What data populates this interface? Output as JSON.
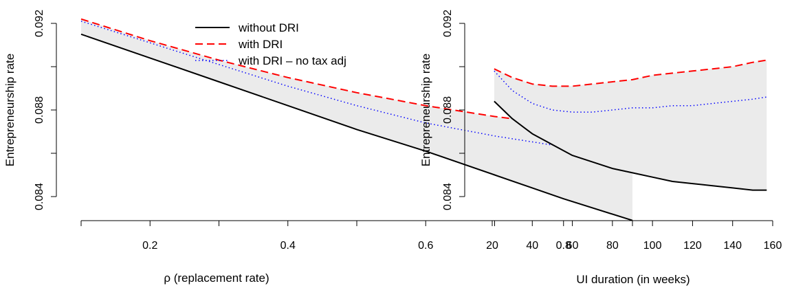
{
  "chart_data": [
    {
      "type": "line",
      "title": "",
      "xlabel": "ρ (replacement rate)",
      "ylabel": "Entrepreneurship rate",
      "xlim": [
        0.1,
        0.9
      ],
      "ylim": [
        0.0834,
        0.0922
      ],
      "x_ticks": [
        0.2,
        0.4,
        0.6,
        0.8
      ],
      "x_tick_labels": [
        "0.2",
        "0.4",
        "0.6",
        "0.8"
      ],
      "x_minor_ticks": [
        0.1,
        0.3,
        0.5,
        0.7,
        0.9
      ],
      "y_ticks": [
        0.084,
        0.088,
        0.092
      ],
      "y_tick_labels": [
        "0.084",
        "0.088",
        "0.092"
      ],
      "y_minor_ticks": [
        0.086,
        0.09
      ],
      "grid": false,
      "shaded_band": {
        "between": [
          "without DRI",
          "with DRI"
        ],
        "color": "#ebebeb"
      },
      "legend": {
        "placement": "top-center",
        "entries": [
          "without DRI",
          "with DRI",
          "with DRI – no tax adj"
        ]
      },
      "x": [
        0.1,
        0.2,
        0.3,
        0.4,
        0.5,
        0.6,
        0.7,
        0.8,
        0.9
      ],
      "series": [
        {
          "name": "without DRI",
          "color": "#000000",
          "dash": "solid",
          "values": [
            0.0915,
            0.0904,
            0.0893,
            0.0882,
            0.0871,
            0.0861,
            0.085,
            0.0839,
            0.0829
          ]
        },
        {
          "name": "with DRI",
          "color": "#ff0000",
          "dash": "dashed",
          "values": [
            0.0922,
            0.0912,
            0.0903,
            0.0895,
            0.0888,
            0.0882,
            0.0877,
            0.0873,
            0.0871
          ]
        },
        {
          "name": "with DRI – no tax adj",
          "color": "#0000ff",
          "dash": "dotted",
          "values": [
            0.0921,
            0.0911,
            0.0901,
            0.0891,
            0.0882,
            0.0874,
            0.0868,
            0.0863,
            0.0861
          ]
        }
      ]
    },
    {
      "type": "line",
      "title": "",
      "xlabel": "UI duration (in weeks)",
      "ylabel": "Entrepreneurship rate",
      "xlim": [
        15,
        160
      ],
      "ylim": [
        0.0834,
        0.0922
      ],
      "x_ticks": [
        20,
        40,
        60,
        80,
        100,
        120,
        140,
        160
      ],
      "x_tick_labels": [
        "20",
        "40",
        "60",
        "80",
        "100",
        "120",
        "140",
        "160"
      ],
      "y_ticks": [
        0.084,
        0.088,
        0.092
      ],
      "y_tick_labels": [
        "0.084",
        "0.088",
        "0.092"
      ],
      "y_minor_ticks": [
        0.086,
        0.09
      ],
      "grid": false,
      "shaded_band": {
        "between": [
          "without DRI",
          "with DRI"
        ],
        "color": "#ebebeb"
      },
      "x": [
        21,
        30,
        40,
        50,
        60,
        70,
        80,
        90,
        100,
        110,
        120,
        130,
        140,
        150,
        157
      ],
      "series": [
        {
          "name": "without DRI",
          "color": "#000000",
          "dash": "solid",
          "values": [
            0.0884,
            0.0876,
            0.0869,
            0.0864,
            0.0859,
            0.0856,
            0.0853,
            0.0851,
            0.0849,
            0.0847,
            0.0846,
            0.0845,
            0.0844,
            0.0843,
            0.0843
          ]
        },
        {
          "name": "with DRI",
          "color": "#ff0000",
          "dash": "dashed",
          "values": [
            0.0899,
            0.0895,
            0.0892,
            0.0891,
            0.0891,
            0.0892,
            0.0893,
            0.0894,
            0.0896,
            0.0897,
            0.0898,
            0.0899,
            0.09,
            0.0902,
            0.0903
          ]
        },
        {
          "name": "with DRI – no tax adj",
          "color": "#0000ff",
          "dash": "dotted",
          "values": [
            0.0898,
            0.0889,
            0.0883,
            0.088,
            0.0879,
            0.0879,
            0.088,
            0.0881,
            0.0881,
            0.0882,
            0.0882,
            0.0883,
            0.0884,
            0.0885,
            0.0886
          ]
        }
      ]
    }
  ]
}
